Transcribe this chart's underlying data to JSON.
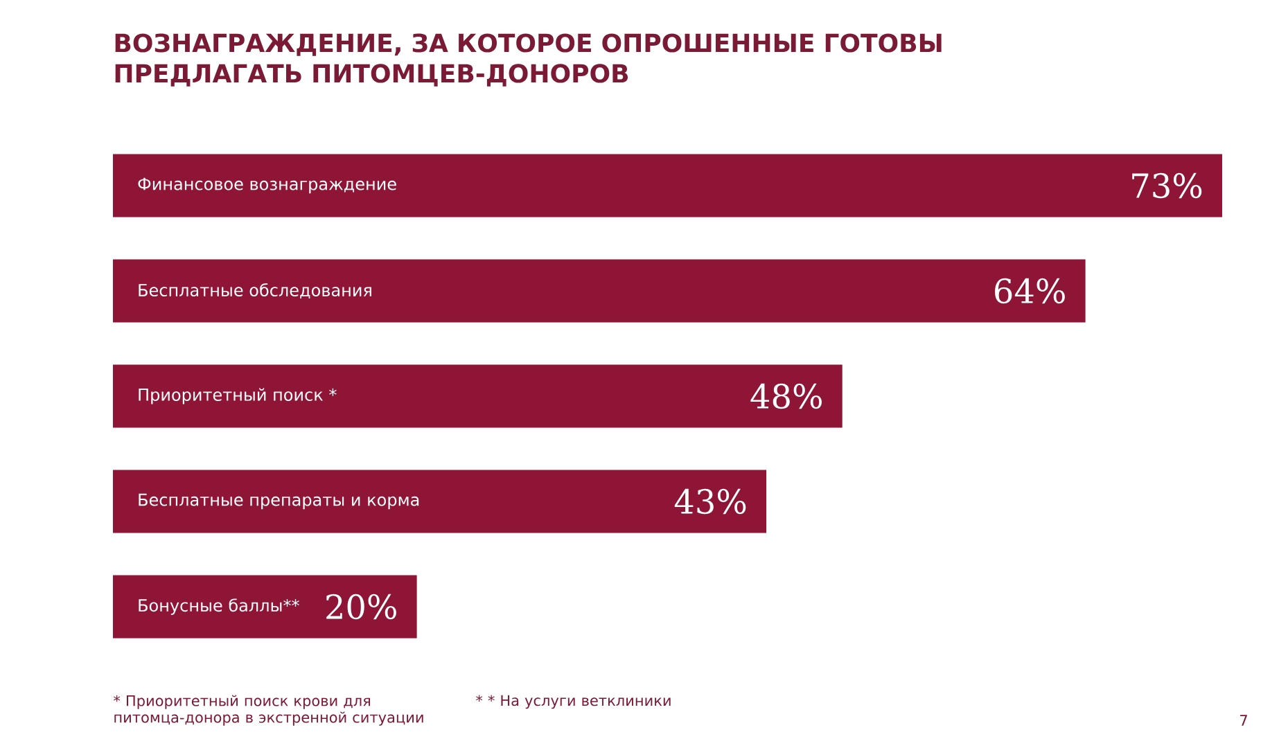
{
  "chart_data": {
    "type": "bar",
    "orientation": "horizontal",
    "title": "ВОЗНАГРАЖДЕНИЕ, ЗА КОТОРОЕ ОПРОШЕННЫЕ ГОТОВЫ ПРЕДЛАГАТЬ ПИТОМЦЕВ-ДОНОРОВ",
    "categories": [
      "Финансовое вознаграждение",
      "Бесплатные обследования",
      "Приоритетный поиск *",
      "Бесплатные препараты и корма",
      "Бонусные баллы**"
    ],
    "values": [
      73,
      64,
      48,
      43,
      20
    ],
    "value_labels": [
      "73%",
      "64%",
      "48%",
      "43%",
      "20%"
    ],
    "color": "#8e1535",
    "annotations": [
      "* Приоритетный поиск крови для питомца-донора в экстренной ситуации",
      "* * На услуги ветклиники",
      "7"
    ]
  }
}
